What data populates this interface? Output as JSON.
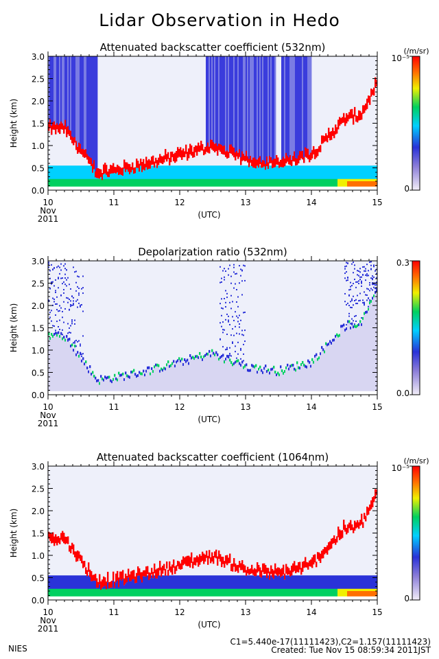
{
  "page_title": "Lidar Observation in Hedo",
  "footer": {
    "org": "NIES",
    "calib": "C1=5.440e-17(11111423),C2=1.157(11111423)",
    "created": "Created: Tue Nov 15 08:59:34 2011JST"
  },
  "x_axis": {
    "unit_label": "(UTC)",
    "ticks": [
      "10",
      "11",
      "12",
      "13",
      "14",
      "15"
    ],
    "start_month": "Nov",
    "start_year": "2011"
  },
  "colors": {
    "scale": [
      "#f2eef8",
      "#2a32d8",
      "#00d0ff",
      "#00d060",
      "#f0f000",
      "#ff7000",
      "#ff0000"
    ],
    "background_haze": "#eef0fa",
    "dense_blue": "#3a3cdc"
  },
  "chart_data": [
    {
      "type": "heatmap",
      "title": "Attenuated backscatter coefficient (532nm)",
      "ylabel": "Height (km)",
      "xlabel": "(UTC)",
      "x_range_day": [
        10,
        15
      ],
      "ylim": [
        0.0,
        3.0
      ],
      "y_ticks": [
        "0.0",
        "0.5",
        "1.0",
        "1.5",
        "2.0",
        "2.5",
        "3.0"
      ],
      "colorbar": {
        "unit": "(/m/sr)",
        "max_label": "10⁻⁵",
        "min_label": "0"
      },
      "cloud_base_km": {
        "day": [
          10.25,
          10.75,
          11.0,
          11.5,
          12.0,
          12.5,
          13.0,
          13.5,
          14.0,
          14.5,
          14.75,
          15.0
        ],
        "height": [
          1.3,
          0.3,
          0.35,
          0.5,
          0.7,
          0.9,
          0.6,
          0.5,
          0.7,
          1.5,
          1.6,
          2.3
        ]
      }
    },
    {
      "type": "heatmap",
      "title": "Depolarization ratio (532nm)",
      "ylabel": "Height (km)",
      "xlabel": "(UTC)",
      "x_range_day": [
        10,
        15
      ],
      "ylim": [
        0.0,
        3.0
      ],
      "y_ticks": [
        "0.0",
        "0.5",
        "1.0",
        "1.5",
        "2.0",
        "2.5",
        "3.0"
      ],
      "colorbar": {
        "unit": "",
        "max_label": "0.3",
        "min_label": "0.0"
      }
    },
    {
      "type": "heatmap",
      "title": "Attenuated backscatter coefficient (1064nm)",
      "ylabel": "Height (km)",
      "xlabel": "(UTC)",
      "x_range_day": [
        10,
        15
      ],
      "ylim": [
        0.0,
        3.0
      ],
      "y_ticks": [
        "0.0",
        "0.5",
        "1.0",
        "1.5",
        "2.0",
        "2.5",
        "3.0"
      ],
      "colorbar": {
        "unit": "(/m/sr)",
        "max_label": "10⁻⁵",
        "min_label": "0"
      }
    }
  ]
}
